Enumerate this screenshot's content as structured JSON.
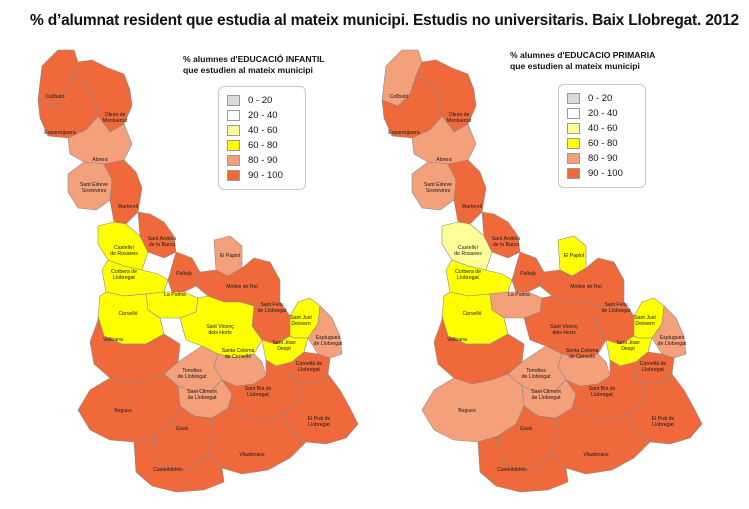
{
  "title": "% d’alumnat resident que estudia al mateix municipi. Estudis no universitaris. Baix Llobregat. 2012",
  "legend_items": [
    {
      "label": "0 - 20",
      "color": "#d9d9d9"
    },
    {
      "label": "20 - 40",
      "color": "#ffffff"
    },
    {
      "label": "40 - 60",
      "color": "#ffff99"
    },
    {
      "label": "60 - 80",
      "color": "#ffff00"
    },
    {
      "label": "80 - 90",
      "color": "#f4a07a"
    },
    {
      "label": "90 - 100",
      "color": "#f0693a"
    }
  ],
  "maps": [
    {
      "title_line1": "% alumnes d'EDUCACIÓ INFANTIL",
      "title_line2": "que estudien al mateix municipi",
      "municipalities": [
        {
          "label": "Collbató",
          "class": "90 - 100"
        },
        {
          "label": "Esparreguera",
          "class": "90 - 100"
        },
        {
          "label": "Olesa de Montserrat",
          "class": "90 - 100"
        },
        {
          "label": "Abrera",
          "class": "80 - 90"
        },
        {
          "label": "Sant Esteve Sesrovires",
          "class": "80 - 90"
        },
        {
          "label": "Martorell",
          "class": "90 - 100"
        },
        {
          "label": "Castellví de Rosanes",
          "class": "60 - 80"
        },
        {
          "label": "Sant Andreu de la Barca",
          "class": "90 - 100"
        },
        {
          "label": "El Papiol",
          "class": "80 - 90"
        },
        {
          "label": "Corbera de Llobregat",
          "class": "60 - 80"
        },
        {
          "label": "Pallejà",
          "class": "90 - 100"
        },
        {
          "label": "Molins de Rei",
          "class": "90 - 100"
        },
        {
          "label": "La Palma",
          "class": "60 - 80"
        },
        {
          "label": "Cervelló",
          "class": "60 - 80"
        },
        {
          "label": "Sant Feliu de Llobregat",
          "class": "90 - 100"
        },
        {
          "label": "Sant Just Desvern",
          "class": "60 - 80"
        },
        {
          "label": "Sant Vicenç dels Horts",
          "class": "60 - 80"
        },
        {
          "label": "Esplugues de Llobregat",
          "class": "80 - 90"
        },
        {
          "label": "Vallirana",
          "class": "90 - 100"
        },
        {
          "label": "Santa Coloma de Cervelló",
          "class": "80 - 90"
        },
        {
          "label": "Sant Joan Despí",
          "class": "60 - 80"
        },
        {
          "label": "Cornellà de Llobregat",
          "class": "90 - 100"
        },
        {
          "label": "Torrelles de Llobregat",
          "class": "80 - 90"
        },
        {
          "label": "Sant Climent de Llobregat",
          "class": "80 - 90"
        },
        {
          "label": "Sant Boi de Llobregat",
          "class": "90 - 100"
        },
        {
          "label": "Begues",
          "class": "90 - 100"
        },
        {
          "label": "El Prat de Llobregat",
          "class": "90 - 100"
        },
        {
          "label": "Gavà",
          "class": "90 - 100"
        },
        {
          "label": "Viladecans",
          "class": "90 - 100"
        },
        {
          "label": "Castelldefels",
          "class": "90 - 100"
        }
      ]
    },
    {
      "title_line1": "% alumnes d'EDUCACIO PRIMARIA",
      "title_line2": "que estudien al mateix municipi",
      "municipalities": [
        {
          "label": "Collbató",
          "class": "80 - 90"
        },
        {
          "label": "Esparreguera",
          "class": "90 - 100"
        },
        {
          "label": "Olesa de Montserrat",
          "class": "90 - 100"
        },
        {
          "label": "Abrera",
          "class": "80 - 90"
        },
        {
          "label": "Sant Esteve Sesrovires",
          "class": "80 - 90"
        },
        {
          "label": "Martorell",
          "class": "90 - 100"
        },
        {
          "label": "Castellví de Rosanes",
          "class": "40 - 60"
        },
        {
          "label": "Sant Andreu de la Barca",
          "class": "90 - 100"
        },
        {
          "label": "El Papiol",
          "class": "60 - 80"
        },
        {
          "label": "Corbera de Llobregat",
          "class": "60 - 80"
        },
        {
          "label": "Pallejà",
          "class": "90 - 100"
        },
        {
          "label": "Molins de Rei",
          "class": "90 - 100"
        },
        {
          "label": "La Palma",
          "class": "80 - 90"
        },
        {
          "label": "Cervelló",
          "class": "60 - 80"
        },
        {
          "label": "Sant Feliu de Llobregat",
          "class": "90 - 100"
        },
        {
          "label": "Sant Just Desvern",
          "class": "60 - 80"
        },
        {
          "label": "Sant Vicenç dels Horts",
          "class": "90 - 100"
        },
        {
          "label": "Esplugues de Llobregat",
          "class": "80 - 90"
        },
        {
          "label": "Vallirana",
          "class": "90 - 100"
        },
        {
          "label": "Santa Coloma de Cervelló",
          "class": "80 - 90"
        },
        {
          "label": "Sant Joan Despí",
          "class": "60 - 80"
        },
        {
          "label": "Cornellà de Llobregat",
          "class": "90 - 100"
        },
        {
          "label": "Torrelles de Llobregat",
          "class": "80 - 90"
        },
        {
          "label": "Sant Climent de Llobregat",
          "class": "80 - 90"
        },
        {
          "label": "Sant Boi de Llobregat",
          "class": "90 - 100"
        },
        {
          "label": "Begues",
          "class": "80 - 90"
        },
        {
          "label": "El Prat de Llobregat",
          "class": "90 - 100"
        },
        {
          "label": "Gavà",
          "class": "90 - 100"
        },
        {
          "label": "Viladecans",
          "class": "90 - 100"
        },
        {
          "label": "Castelldefels",
          "class": "90 - 100"
        }
      ]
    }
  ]
}
